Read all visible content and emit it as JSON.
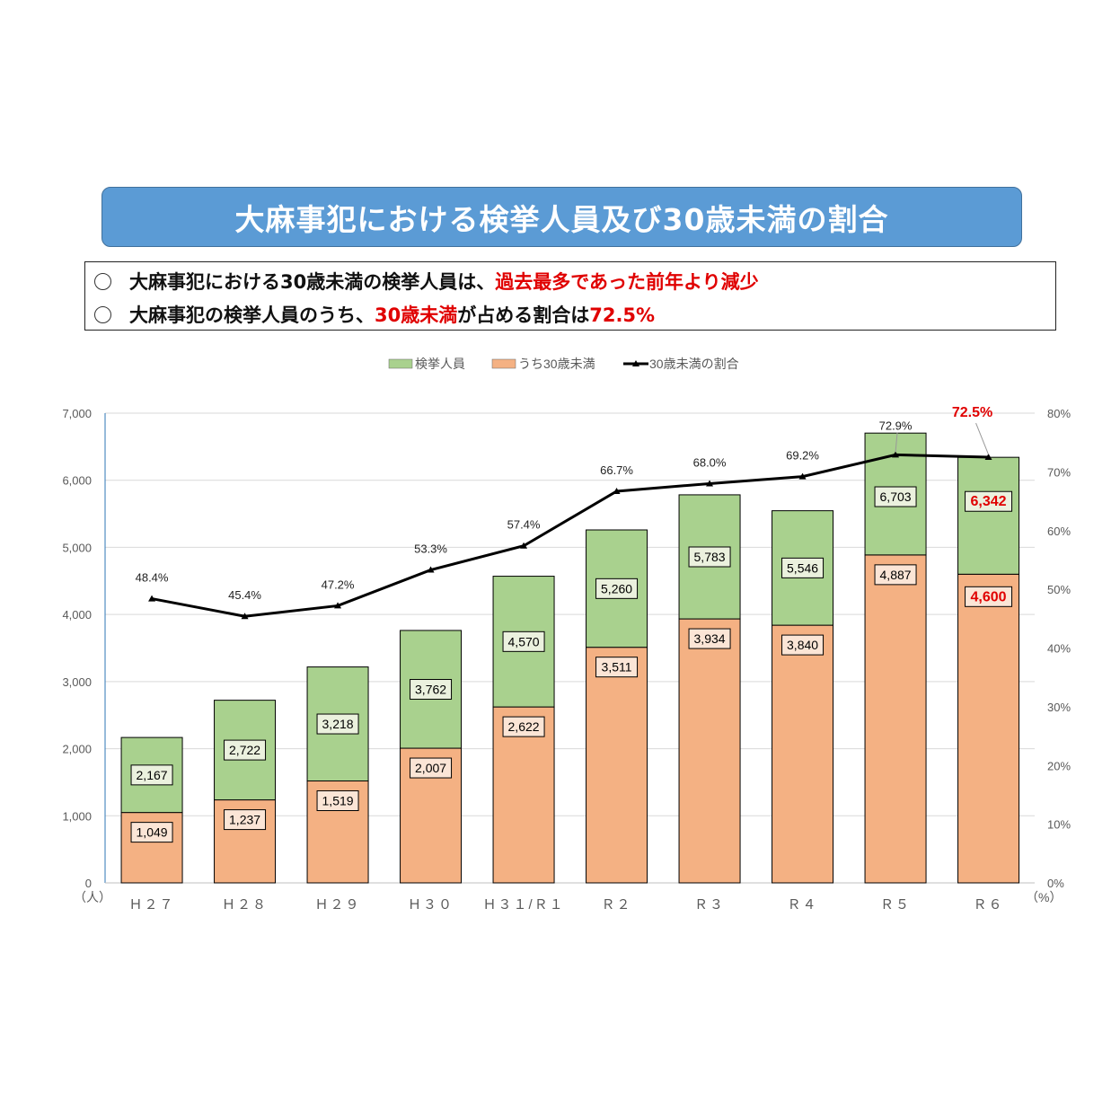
{
  "title": "大麻事犯における検挙人員及び30歳未満の割合",
  "summary": [
    {
      "bullet": "○",
      "parts": [
        {
          "text": "大麻事犯における30歳未満の検挙人員は、",
          "red": false
        },
        {
          "text": "過去最多であった前年より減少",
          "red": true
        }
      ]
    },
    {
      "bullet": "○",
      "parts": [
        {
          "text": "大麻事犯の検挙人員のうち、",
          "red": false
        },
        {
          "text": "30歳未満",
          "red": true
        },
        {
          "text": "が占める割合は",
          "red": false
        },
        {
          "text": "72.5%",
          "red": true
        }
      ]
    }
  ],
  "chart_data": {
    "type": "bar",
    "stacked": true,
    "categories": [
      "Ｈ２７",
      "Ｈ２８",
      "Ｈ２９",
      "Ｈ３０",
      "Ｈ３１/Ｒ１",
      "Ｒ２",
      "Ｒ３",
      "Ｒ４",
      "Ｒ５",
      "Ｒ６"
    ],
    "series": [
      {
        "name": "検挙人員",
        "type": "bar",
        "color": "#a9d18e",
        "values": [
          2167,
          2722,
          3218,
          3762,
          4570,
          5260,
          5783,
          5546,
          6703,
          6342
        ],
        "labels": [
          "2,167",
          "2,722",
          "3,218",
          "3,762",
          "4,570",
          "5,260",
          "5,783",
          "5,546",
          "6,703",
          "6,342"
        ]
      },
      {
        "name": "うち30歳未満",
        "type": "bar",
        "color": "#f4b183",
        "values": [
          1049,
          1237,
          1519,
          2007,
          2622,
          3511,
          3934,
          3840,
          4887,
          4600
        ],
        "labels": [
          "1,049",
          "1,237",
          "1,519",
          "2,007",
          "2,622",
          "3,511",
          "3,934",
          "3,840",
          "4,887",
          "4,600"
        ]
      },
      {
        "name": "30歳未満の割合",
        "type": "line",
        "axis": "right",
        "color": "#000000",
        "values": [
          48.4,
          45.4,
          47.2,
          53.3,
          57.4,
          66.7,
          68.0,
          69.2,
          72.9,
          72.5
        ],
        "labels": [
          "48.4%",
          "45.4%",
          "47.2%",
          "53.3%",
          "57.4%",
          "66.7%",
          "68.0%",
          "69.2%",
          "72.9%",
          "72.5%"
        ]
      }
    ],
    "highlight_color": "#e00000",
    "y_left": {
      "range": [
        0,
        7000
      ],
      "ticks": [
        "0",
        "1,000",
        "2,000",
        "3,000",
        "4,000",
        "5,000",
        "6,000",
        "7,000"
      ],
      "unit": "（人）"
    },
    "y_right": {
      "range": [
        0,
        80
      ],
      "ticks": [
        "0%",
        "10%",
        "20%",
        "30%",
        "40%",
        "50%",
        "60%",
        "70%",
        "80%"
      ],
      "unit": "（%）"
    },
    "grid": true,
    "legend": "top"
  }
}
